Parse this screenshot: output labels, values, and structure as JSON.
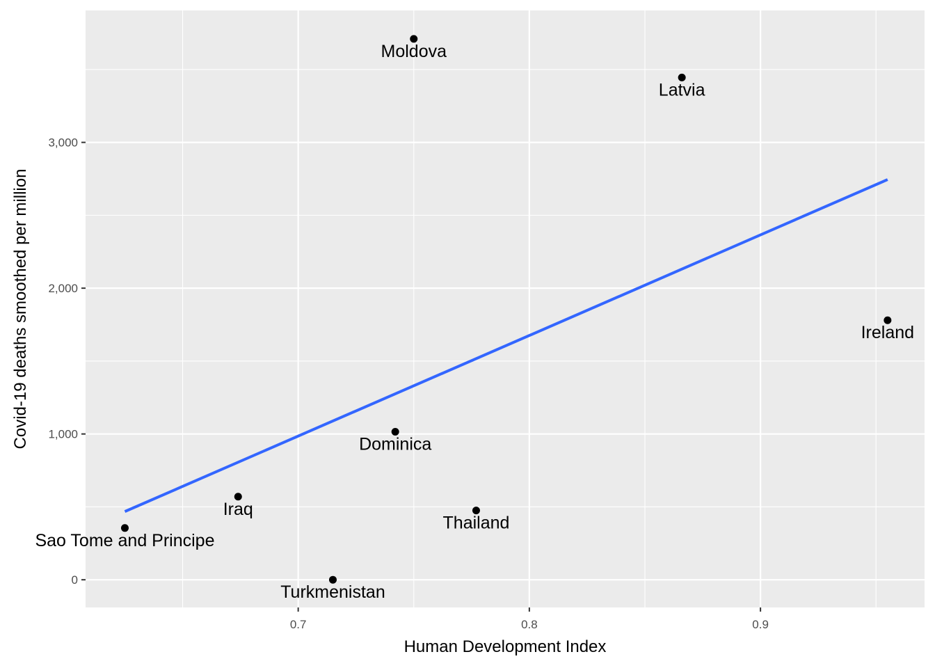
{
  "chart_data": {
    "type": "scatter",
    "title": "",
    "xlabel": "Human Development Index",
    "ylabel": "Covid-19 deaths smoothed per million",
    "xlim": [
      0.608,
      0.971
    ],
    "ylim": [
      -190,
      3905
    ],
    "x_ticks": [
      {
        "value": 0.7,
        "label": "0.7"
      },
      {
        "value": 0.8,
        "label": "0.8"
      },
      {
        "value": 0.9,
        "label": "0.9"
      }
    ],
    "y_ticks": [
      {
        "value": 0,
        "label": "0"
      },
      {
        "value": 1000,
        "label": "1,000"
      },
      {
        "value": 2000,
        "label": "2,000"
      },
      {
        "value": 3000,
        "label": "3,000"
      }
    ],
    "grid": true,
    "points": [
      {
        "label": "Moldova",
        "x": 0.75,
        "y": 3710
      },
      {
        "label": "Latvia",
        "x": 0.866,
        "y": 3445
      },
      {
        "label": "Ireland",
        "x": 0.955,
        "y": 1780
      },
      {
        "label": "Dominica",
        "x": 0.742,
        "y": 1015
      },
      {
        "label": "Iraq",
        "x": 0.674,
        "y": 570
      },
      {
        "label": "Thailand",
        "x": 0.777,
        "y": 475
      },
      {
        "label": "Sao Tome and Principe",
        "x": 0.625,
        "y": 355
      },
      {
        "label": "Turkmenistan",
        "x": 0.715,
        "y": 0
      }
    ],
    "trend_line": {
      "type": "linear",
      "color": "#3366FF",
      "x": [
        0.625,
        0.955
      ],
      "y": [
        468,
        2745
      ]
    },
    "colors": {
      "panel": "#EBEBEB",
      "grid": "#FFFFFF",
      "point": "#000000"
    }
  }
}
